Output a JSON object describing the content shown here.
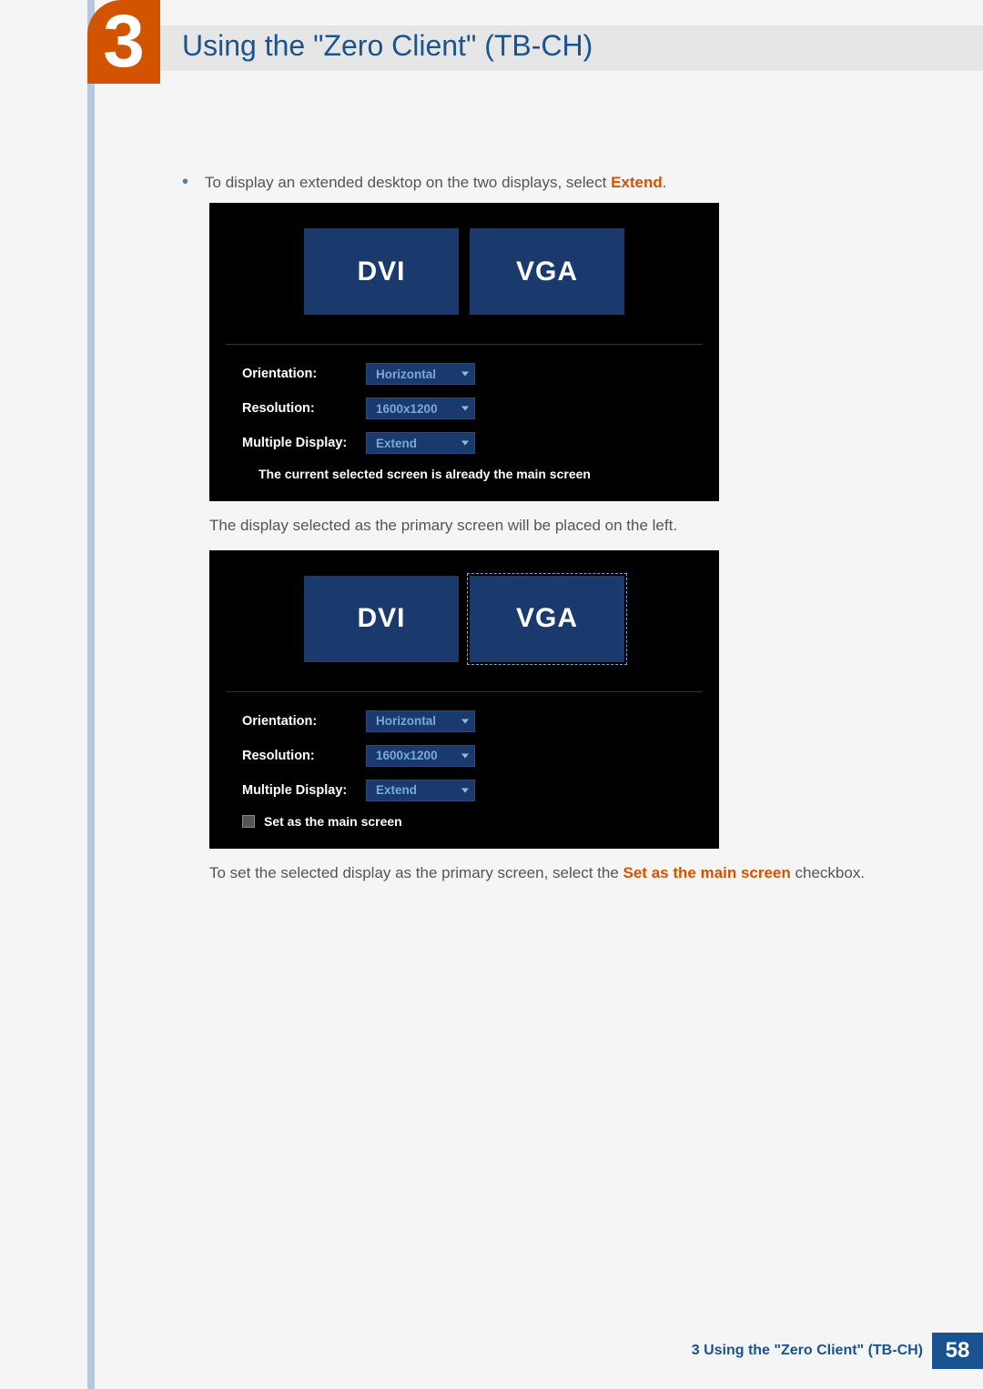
{
  "chapter": {
    "number": "3",
    "title": "Using the \"Zero Client\" (TB-CH)"
  },
  "bullet": {
    "prefix": "To display an extended desktop on the two displays, select ",
    "keyword": "Extend",
    "suffix": "."
  },
  "screenshot1": {
    "tiles": [
      {
        "label": "DVI",
        "selected": false
      },
      {
        "label": "VGA",
        "selected": false
      }
    ],
    "rows": {
      "orientation": {
        "label": "Orientation:",
        "value": "Horizontal"
      },
      "resolution": {
        "label": "Resolution:",
        "value": "1600x1200"
      },
      "multiple": {
        "label": "Multiple Display:",
        "value": "Extend"
      }
    },
    "status": "The current selected screen is already the main screen"
  },
  "caption1": "The display selected as the primary screen will be placed on the left.",
  "screenshot2": {
    "tiles": [
      {
        "label": "DVI",
        "selected": false
      },
      {
        "label": "VGA",
        "selected": true
      }
    ],
    "rows": {
      "orientation": {
        "label": "Orientation:",
        "value": "Horizontal"
      },
      "resolution": {
        "label": "Resolution:",
        "value": "1600x1200"
      },
      "multiple": {
        "label": "Multiple Display:",
        "value": "Extend"
      }
    },
    "checkbox": "Set as the main screen"
  },
  "caption2": {
    "prefix": "To set the selected display as the primary screen, select the ",
    "keyword": "Set as the main screen",
    "suffix": " checkbox."
  },
  "footer": {
    "text": "3 Using the \"Zero Client\" (TB-CH)",
    "page": "58"
  },
  "colors": {
    "accent_orange": "#d35400",
    "accent_blue": "#1a5490",
    "tile_blue": "#1a3a6e",
    "dropdown_text": "#7aa8d8",
    "side_strip": "#b5c8e0",
    "body_text": "#555555"
  }
}
